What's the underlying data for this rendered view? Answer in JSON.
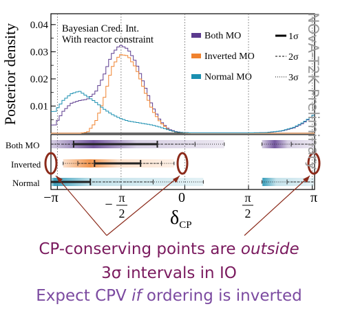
{
  "chart_data": {
    "type": "line",
    "ylabel": "Posterior density",
    "annotation_lines": [
      "Bayesian Cred. Int.",
      "With reactor constraint"
    ],
    "y_ticks": [
      "0.04",
      "0.03",
      "0.02",
      "0.01"
    ],
    "y_tick_values": [
      0.04,
      0.03,
      0.02,
      0.01
    ],
    "ylim": [
      0,
      0.044
    ],
    "xlim": [
      -3.3,
      3.2
    ],
    "x_tick_values": [
      -3.14159,
      -1.5708,
      0,
      1.5708,
      3.14159
    ],
    "x_tick_labels": [
      "−π",
      "−π/2",
      "0",
      "π/2",
      "π"
    ],
    "xlabel_main": "δ",
    "xlabel_sub": "CP",
    "legend": {
      "series": [
        "Both MO",
        "Inverted MO",
        "Normal MO"
      ],
      "sigmas": [
        "1σ",
        "2σ",
        "3σ"
      ]
    },
    "series": [
      {
        "name": "Both MO",
        "color": "#5b3a8e",
        "x": [
          -3.2,
          -3.0,
          -2.8,
          -2.6,
          -2.4,
          -2.2,
          -2.0,
          -1.8,
          -1.6,
          -1.4,
          -1.2,
          -1.0,
          -0.8,
          -0.6,
          -0.4,
          -0.2,
          0.0,
          0.2,
          0.5,
          1.0,
          1.5,
          2.0,
          2.4,
          2.7,
          2.9,
          3.0,
          3.1,
          3.2
        ],
        "values": [
          0.003,
          0.008,
          0.011,
          0.012,
          0.0125,
          0.015,
          0.021,
          0.029,
          0.0325,
          0.031,
          0.026,
          0.018,
          0.01,
          0.0045,
          0.0015,
          0.0005,
          0.0002,
          0.0001,
          0.0001,
          0.0001,
          0.0001,
          0.0002,
          0.0008,
          0.002,
          0.0035,
          0.0045,
          0.0058,
          0.007
        ]
      },
      {
        "name": "Inverted MO",
        "color": "#f0822e",
        "x": [
          -3.2,
          -3.0,
          -2.8,
          -2.6,
          -2.4,
          -2.2,
          -2.0,
          -1.8,
          -1.6,
          -1.4,
          -1.2,
          -1.0,
          -0.8,
          -0.6,
          -0.4,
          -0.2,
          0.0,
          0.2,
          1.0,
          2.0,
          3.2
        ],
        "values": [
          0.0,
          0.0,
          0.0,
          0.0,
          0.0003,
          0.004,
          0.012,
          0.024,
          0.029,
          0.0285,
          0.024,
          0.016,
          0.0085,
          0.004,
          0.0012,
          0.0003,
          0.0001,
          0.0,
          0.0,
          0.0,
          0.0
        ]
      },
      {
        "name": "Normal MO",
        "color": "#1a8fb0",
        "x": [
          -3.2,
          -3.0,
          -2.8,
          -2.6,
          -2.4,
          -2.2,
          -2.0,
          -1.8,
          -1.6,
          -1.4,
          -1.2,
          -1.0,
          -0.8,
          -0.6,
          -0.4,
          -0.2,
          0.0,
          0.2,
          0.5,
          1.0,
          1.5,
          2.0,
          2.4,
          2.7,
          2.9,
          3.0,
          3.1,
          3.2
        ],
        "values": [
          0.008,
          0.012,
          0.0145,
          0.0155,
          0.0135,
          0.0115,
          0.009,
          0.007,
          0.0055,
          0.0045,
          0.004,
          0.0035,
          0.003,
          0.0022,
          0.0012,
          0.0004,
          0.0002,
          0.0001,
          0.0001,
          0.0001,
          0.0001,
          0.0002,
          0.0009,
          0.0022,
          0.0038,
          0.0048,
          0.0058,
          0.007
        ]
      }
    ],
    "intervals": [
      {
        "label": "Both MO",
        "color": "#5b3a8e",
        "center": -1.6,
        "sigma1": [
          [
            -2.6,
            -0.6
          ]
        ],
        "sigma2": [
          [
            -3.14159,
            0.3
          ],
          [
            2.6,
            3.14159
          ]
        ],
        "sigma3": [
          [
            -3.14159,
            1.0
          ],
          [
            1.9,
            3.14159
          ]
        ]
      },
      {
        "label": "Inverted",
        "color": "#f0822e",
        "center": -1.6,
        "sigma1": [
          [
            -2.1,
            -1.0
          ]
        ],
        "sigma2": [
          [
            -2.5,
            -0.5
          ]
        ],
        "sigma3": [
          [
            -2.85,
            -0.2
          ]
        ]
      },
      {
        "label": "Normal",
        "color": "#1a8fb0",
        "center": -3.0,
        "sigma1": [
          [
            -3.14159,
            -2.2
          ]
        ],
        "sigma2": [
          [
            -3.14159,
            -0.7
          ],
          [
            2.5,
            3.14159
          ]
        ],
        "sigma3": [
          [
            -3.14159,
            0.5
          ],
          [
            1.9,
            3.14159
          ]
        ]
      }
    ]
  },
  "watermark": "NOvA-T2K Preliminary",
  "caption": {
    "line1_start": "CP-conserving points are ",
    "line1_emph": "outside",
    "line2": "3σ intervals in IO",
    "line3_start": "Expect CPV ",
    "line3_emph": "if",
    "line3_end": " ordering is inverted"
  },
  "colors": {
    "annotation": "#8b2a1a",
    "caption": "#7a1a5e",
    "caption_light": "#7b4aa0"
  }
}
